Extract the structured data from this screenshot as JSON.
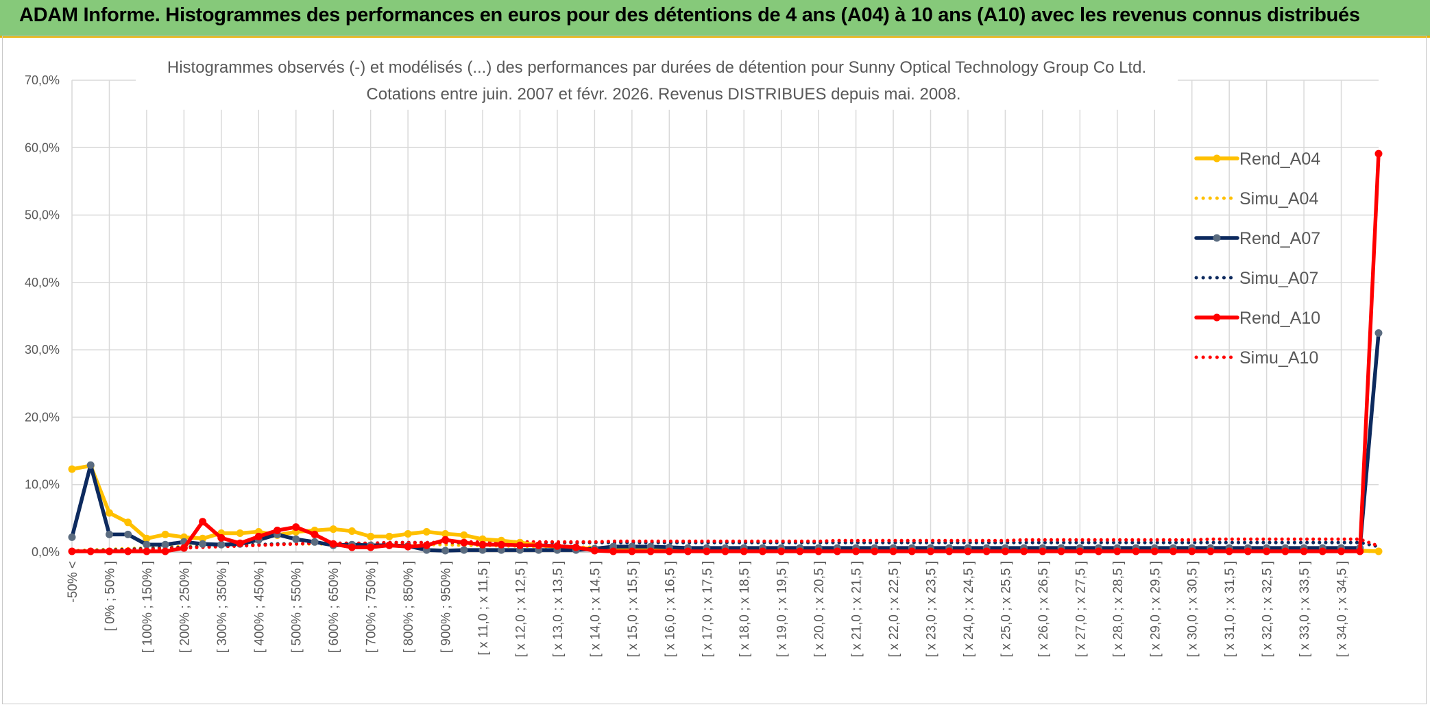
{
  "header": {
    "banner": "ADAM Informe. Histogrammes des performances en euros pour des détentions de 4 ans (A04) à 10 ans (A10) avec les revenus connus distribués"
  },
  "colors": {
    "banner_bg": "#86c97a",
    "a04": "#ffc000",
    "a07": "#0d2a5e",
    "a07_marker": "#5b6c80",
    "a10": "#ff0000",
    "grid": "#d9d9d9",
    "text": "#595959"
  },
  "chart_data": {
    "type": "line",
    "title": "Histogrammes observés (-) et modélisés (...) des performances par durées de détention pour Sunny Optical Technology Group Co Ltd.",
    "subtitle": "Cotations entre juin. 2007 et févr. 2026. Revenus DISTRIBUES depuis mai. 2008.",
    "ylim": [
      0,
      70
    ],
    "yticks": [
      "0,0%",
      "10,0%",
      "20,0%",
      "30,0%",
      "40,0%",
      "50,0%",
      "60,0%",
      "70,0%"
    ],
    "x_labels": [
      "-50% <",
      "[ 0% ; 50% ]",
      "[ 100% ; 150% ]",
      "[ 200% ; 250% ]",
      "[ 300% ; 350% ]",
      "[ 400% ; 450% ]",
      "[ 500% ; 550% ]",
      "[ 600% ; 650% ]",
      "[ 700% ; 750% ]",
      "[ 800% ; 850% ]",
      "[ 900% ; 950% ]",
      "[ x 11,0 ; x 11,5 ]",
      "[ x 12,0 ; x 12,5 ]",
      "[ x 13,0 ; x 13,5 ]",
      "[ x 14,0 ; x 14,5 ]",
      "[ x 15,0 ; x 15,5 ]",
      "[ x 16,0 ; x 16,5 ]",
      "[ x 17,0 ; x 17,5 ]",
      "[ x 18,0 ; x 18,5 ]",
      "[ x 19,0 ; x 19,5 ]",
      "[ x 20,0 ; x 20,5 ]",
      "[ x 21,0 ; x 21,5 ]",
      "[ x 22,0 ; x 22,5 ]",
      "[ x 23,0 ; x 23,5 ]",
      "[ x 24,0 ; x 24,5 ]",
      "[ x 25,0 ; x 25,5 ]",
      "[ x 26,0 ; x 26,5 ]",
      "[ x 27,0 ; x 27,5 ]",
      "[ x 28,0 ; x 28,5 ]",
      "[ x 29,0 ; x 29,5 ]",
      "[ x 30,0 ; x 30,5 ]",
      "[ x 31,0 ; x 31,5 ]",
      "[ x 32,0 ; x 32,5 ]",
      "[ x 33,0 ; x 33,5 ]",
      "[ x 34,0 ; x 34,5 ]"
    ],
    "n_bins": 71,
    "legend_position": "right",
    "series": [
      {
        "name": "Rend_A04",
        "style": "solid",
        "color": "#ffc000",
        "values": [
          12.3,
          12.8,
          5.8,
          4.4,
          2.0,
          2.6,
          2.2,
          2.0,
          2.8,
          2.8,
          3.0,
          2.5,
          3.0,
          3.2,
          3.4,
          3.1,
          2.3,
          2.3,
          2.7,
          3.0,
          2.7,
          2.5,
          1.9,
          1.7,
          1.4,
          1.0,
          0.8,
          0.6,
          0.5,
          0.5,
          0.5,
          0.5,
          0.4,
          0.4,
          0.3,
          0.3,
          0.3,
          0.3,
          0.3,
          0.3,
          0.3,
          0.3,
          0.2,
          0.2,
          0.2,
          0.2,
          0.2,
          0.2,
          0.2,
          0.2,
          0.2,
          0.2,
          0.2,
          0.2,
          0.2,
          0.2,
          0.2,
          0.2,
          0.2,
          0.2,
          0.2,
          0.2,
          0.2,
          0.2,
          0.2,
          0.2,
          0.2,
          0.2,
          0.2,
          0.2,
          0.1
        ]
      },
      {
        "name": "Simu_A04",
        "style": "dotted",
        "color": "#ffc000",
        "values": [
          0.2,
          0.3,
          0.4,
          0.5,
          0.6,
          0.7,
          0.8,
          0.9,
          1.0,
          1.1,
          1.1,
          1.2,
          1.2,
          1.2,
          1.2,
          1.2,
          1.2,
          1.2,
          1.2,
          1.1,
          1.1,
          1.0,
          1.0,
          0.9,
          0.9,
          0.8,
          0.8,
          0.7,
          0.7,
          0.6,
          0.6,
          0.5,
          0.5,
          0.5,
          0.4,
          0.4,
          0.4,
          0.3,
          0.3,
          0.3,
          0.3,
          0.3,
          0.2,
          0.2,
          0.2,
          0.2,
          0.2,
          0.2,
          0.2,
          0.2,
          0.1,
          0.1,
          0.1,
          0.1,
          0.1,
          0.1,
          0.1,
          0.1,
          0.1,
          0.1,
          0.1,
          0.1,
          0.1,
          0.1,
          0.1,
          0.1,
          0.1,
          0.1,
          0.1,
          0.1,
          0.1
        ]
      },
      {
        "name": "Rend_A07",
        "style": "solid",
        "color": "#0d2a5e",
        "values": [
          2.2,
          12.9,
          2.6,
          2.6,
          1.1,
          1.1,
          1.5,
          1.2,
          1.1,
          1.2,
          1.8,
          2.6,
          1.9,
          1.5,
          1.0,
          1.1,
          1.0,
          1.0,
          0.9,
          0.3,
          0.2,
          0.3,
          0.3,
          0.3,
          0.3,
          0.3,
          0.3,
          0.3,
          0.5,
          0.8,
          0.8,
          0.8,
          0.7,
          0.6,
          0.6,
          0.6,
          0.6,
          0.6,
          0.6,
          0.6,
          0.6,
          0.6,
          0.6,
          0.6,
          0.6,
          0.6,
          0.6,
          0.6,
          0.6,
          0.6,
          0.6,
          0.6,
          0.6,
          0.6,
          0.6,
          0.6,
          0.6,
          0.6,
          0.6,
          0.6,
          0.6,
          0.6,
          0.6,
          0.6,
          0.6,
          0.6,
          0.6,
          0.6,
          0.6,
          0.6,
          32.5
        ]
      },
      {
        "name": "Simu_A07",
        "style": "dotted",
        "color": "#0d2a5e",
        "values": [
          0.1,
          0.2,
          0.3,
          0.4,
          0.5,
          0.6,
          0.7,
          0.8,
          0.9,
          1.0,
          1.1,
          1.2,
          1.2,
          1.3,
          1.3,
          1.3,
          1.3,
          1.4,
          1.4,
          1.4,
          1.4,
          1.4,
          1.4,
          1.4,
          1.4,
          1.4,
          1.4,
          1.4,
          1.4,
          1.4,
          1.4,
          1.4,
          1.4,
          1.4,
          1.4,
          1.4,
          1.4,
          1.4,
          1.4,
          1.4,
          1.4,
          1.4,
          1.4,
          1.4,
          1.4,
          1.4,
          1.4,
          1.4,
          1.4,
          1.4,
          1.4,
          1.4,
          1.4,
          1.4,
          1.4,
          1.4,
          1.4,
          1.4,
          1.4,
          1.4,
          1.4,
          1.4,
          1.4,
          1.4,
          1.4,
          1.4,
          1.4,
          1.4,
          1.4,
          1.4,
          0.8
        ]
      },
      {
        "name": "Rend_A10",
        "style": "solid",
        "color": "#ff0000",
        "values": [
          0.1,
          0.1,
          0.1,
          0.1,
          0.1,
          0.1,
          0.6,
          4.5,
          2.1,
          1.3,
          2.3,
          3.2,
          3.7,
          2.6,
          1.2,
          0.7,
          0.7,
          1.0,
          0.8,
          1.0,
          1.8,
          1.4,
          1.1,
          1.1,
          1.0,
          1.0,
          0.9,
          0.7,
          0.2,
          0.1,
          0.1,
          0.1,
          0.1,
          0.1,
          0.1,
          0.1,
          0.1,
          0.1,
          0.1,
          0.1,
          0.1,
          0.1,
          0.1,
          0.1,
          0.1,
          0.1,
          0.1,
          0.1,
          0.1,
          0.1,
          0.1,
          0.1,
          0.1,
          0.1,
          0.1,
          0.1,
          0.1,
          0.1,
          0.1,
          0.1,
          0.1,
          0.1,
          0.1,
          0.1,
          0.1,
          0.1,
          0.1,
          0.1,
          0.1,
          0.1,
          59.1
        ]
      },
      {
        "name": "Simu_A10",
        "style": "dotted",
        "color": "#ff0000",
        "values": [
          0.1,
          0.1,
          0.2,
          0.3,
          0.4,
          0.5,
          0.6,
          0.7,
          0.8,
          0.9,
          1.0,
          1.1,
          1.2,
          1.3,
          1.3,
          1.3,
          1.3,
          1.4,
          1.4,
          1.4,
          1.4,
          1.5,
          1.5,
          1.5,
          1.5,
          1.5,
          1.5,
          1.5,
          1.5,
          1.6,
          1.6,
          1.6,
          1.6,
          1.6,
          1.6,
          1.6,
          1.6,
          1.6,
          1.6,
          1.6,
          1.6,
          1.7,
          1.7,
          1.7,
          1.7,
          1.7,
          1.7,
          1.7,
          1.7,
          1.7,
          1.7,
          1.8,
          1.8,
          1.8,
          1.8,
          1.8,
          1.8,
          1.8,
          1.8,
          1.8,
          1.8,
          1.9,
          1.9,
          1.9,
          1.9,
          1.9,
          1.9,
          1.9,
          1.9,
          1.9,
          0.9
        ]
      }
    ]
  }
}
